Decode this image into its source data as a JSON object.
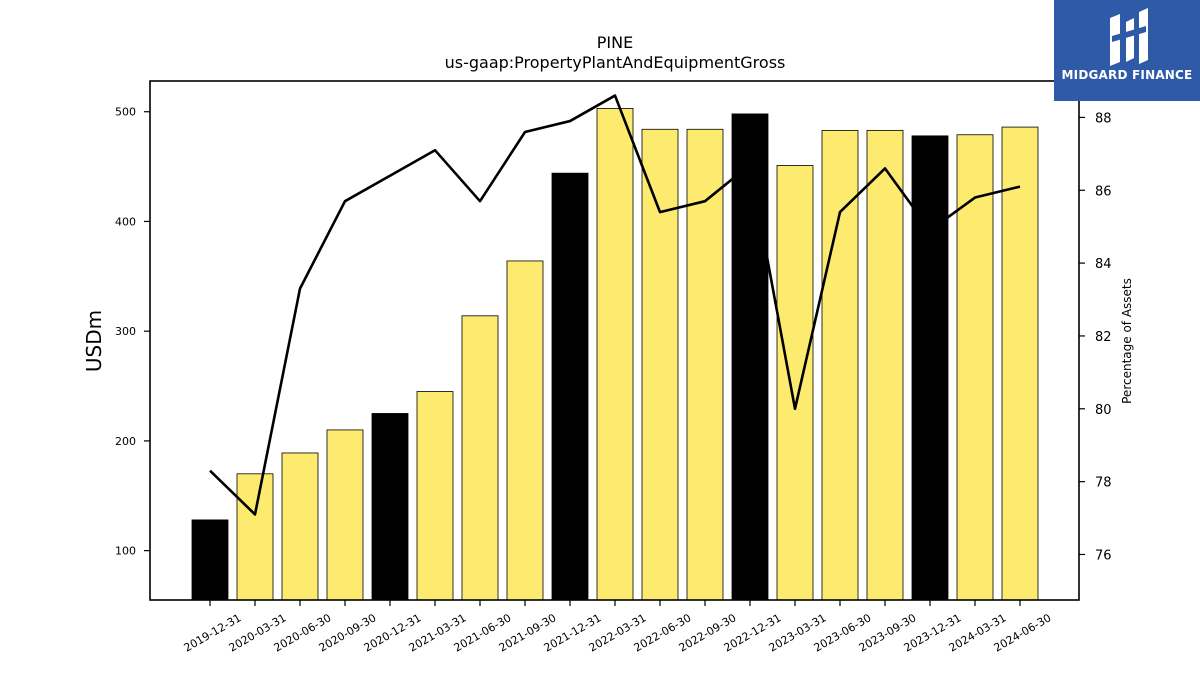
{
  "chart_data": {
    "type": "bar",
    "title": "PINE",
    "subtitle": "us-gaap:PropertyPlantAndEquipmentGross",
    "ylabel": "USDm",
    "y2label": "Percentage of Assets",
    "categories": [
      "2019-12-31",
      "2020-03-31",
      "2020-06-30",
      "2020-09-30",
      "2020-12-31",
      "2021-03-31",
      "2021-06-30",
      "2021-09-30",
      "2021-12-31",
      "2022-03-31",
      "2022-06-30",
      "2022-09-30",
      "2022-12-31",
      "2023-03-31",
      "2023-06-30",
      "2023-09-30",
      "2023-12-31",
      "2024-03-31",
      "2024-06-30"
    ],
    "series": [
      {
        "type": "bar",
        "values": [
          128,
          170,
          189,
          210,
          225,
          245,
          314,
          364,
          444,
          503,
          484,
          484,
          498,
          451,
          483,
          483,
          478,
          479,
          486
        ]
      },
      {
        "type": "line",
        "axis": "right",
        "values": [
          78.3,
          77.1,
          83.3,
          85.7,
          86.4,
          87.1,
          85.7,
          87.6,
          87.9,
          88.6,
          85.4,
          85.7,
          86.7,
          80.0,
          85.4,
          86.6,
          84.9,
          85.8,
          86.1
        ]
      }
    ],
    "year_end_bar_color": "#000000",
    "bar_color": "#fdeb6f",
    "line_color": "#000000",
    "ylim": [
      55,
      528
    ],
    "y2lim": [
      74.75,
      89.0
    ],
    "yticks": [
      100,
      200,
      300,
      400,
      500
    ],
    "y2ticks": [
      76,
      78,
      80,
      82,
      84,
      86,
      88
    ],
    "grid": false
  },
  "logo": {
    "text": "MIDGARD FINANCE",
    "color": "#2f5aa8"
  }
}
